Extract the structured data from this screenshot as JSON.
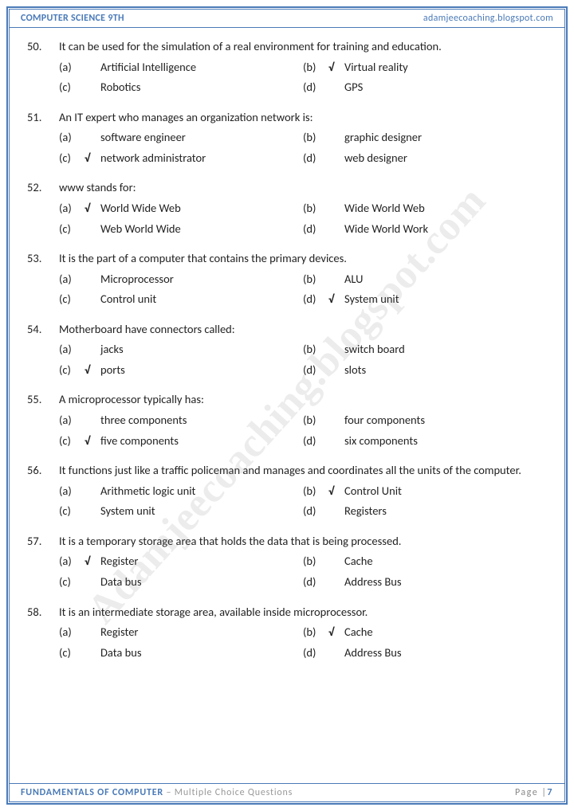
{
  "header": {
    "left": "COMPUTER SCIENCE 9TH",
    "right": "adamjeecoaching.blogspot.com"
  },
  "footer": {
    "title": "FUNDAMENTALS OF COMPUTER",
    "subtitle": " – Multiple Choice Questions",
    "page_label": "Page |",
    "page_num": "7"
  },
  "watermark": "Adamjeecoaching.blogspot.com",
  "check_mark": "√",
  "questions": [
    {
      "num": "50.",
      "text": "It can be used for the simulation of a real environment for training and education.",
      "options": [
        {
          "label": "(a)",
          "text": "Artificial Intelligence",
          "correct": false
        },
        {
          "label": "(b)",
          "text": "Virtual reality",
          "correct": true
        },
        {
          "label": "(c)",
          "text": "Robotics",
          "correct": false
        },
        {
          "label": "(d)",
          "text": "GPS",
          "correct": false
        }
      ]
    },
    {
      "num": "51.",
      "text": "An IT expert who manages an organization network is:",
      "options": [
        {
          "label": "(a)",
          "text": "software engineer",
          "correct": false
        },
        {
          "label": "(b)",
          "text": "graphic designer",
          "correct": false
        },
        {
          "label": "(c)",
          "text": "network administrator",
          "correct": true
        },
        {
          "label": "(d)",
          "text": "web designer",
          "correct": false
        }
      ]
    },
    {
      "num": "52.",
      "text": "www stands for:",
      "options": [
        {
          "label": "(a)",
          "text": "World Wide Web",
          "correct": true
        },
        {
          "label": "(b)",
          "text": "Wide World Web",
          "correct": false
        },
        {
          "label": "(c)",
          "text": "Web World Wide",
          "correct": false
        },
        {
          "label": "(d)",
          "text": "Wide World Work",
          "correct": false
        }
      ]
    },
    {
      "num": "53.",
      "text": "It is the part of a computer that contains the primary devices.",
      "options": [
        {
          "label": "(a)",
          "text": "Microprocessor",
          "correct": false
        },
        {
          "label": "(b)",
          "text": "ALU",
          "correct": false
        },
        {
          "label": "(c)",
          "text": "Control unit",
          "correct": false
        },
        {
          "label": "(d)",
          "text": "System unit",
          "correct": true
        }
      ]
    },
    {
      "num": "54.",
      "text": "Motherboard have connectors called:",
      "options": [
        {
          "label": "(a)",
          "text": "jacks",
          "correct": false
        },
        {
          "label": "(b)",
          "text": "switch board",
          "correct": false
        },
        {
          "label": "(c)",
          "text": "ports",
          "correct": true
        },
        {
          "label": "(d)",
          "text": "slots",
          "correct": false
        }
      ]
    },
    {
      "num": "55.",
      "text": "A microprocessor typically has:",
      "options": [
        {
          "label": "(a)",
          "text": "three components",
          "correct": false
        },
        {
          "label": "(b)",
          "text": "four components",
          "correct": false
        },
        {
          "label": "(c)",
          "text": "five components",
          "correct": true
        },
        {
          "label": "(d)",
          "text": "six components",
          "correct": false
        }
      ]
    },
    {
      "num": "56.",
      "text": "It functions just like a traffic policeman and manages and coordinates all the units of the computer.",
      "options": [
        {
          "label": "(a)",
          "text": "Arithmetic logic unit",
          "correct": false
        },
        {
          "label": "(b)",
          "text": "Control Unit",
          "correct": true
        },
        {
          "label": "(c)",
          "text": "System unit",
          "correct": false
        },
        {
          "label": "(d)",
          "text": "Registers",
          "correct": false
        }
      ]
    },
    {
      "num": "57.",
      "text": "It is a temporary storage area that holds the data that is being processed.",
      "options": [
        {
          "label": "(a)",
          "text": "Register",
          "correct": true
        },
        {
          "label": "(b)",
          "text": "Cache",
          "correct": false
        },
        {
          "label": "(c)",
          "text": "Data bus",
          "correct": false
        },
        {
          "label": "(d)",
          "text": "Address Bus",
          "correct": false
        }
      ]
    },
    {
      "num": "58.",
      "text": "It is an intermediate storage area, available inside microprocessor.",
      "options": [
        {
          "label": "(a)",
          "text": "Register",
          "correct": false
        },
        {
          "label": "(b)",
          "text": "Cache",
          "correct": true
        },
        {
          "label": "(c)",
          "text": "Data bus",
          "correct": false
        },
        {
          "label": "(d)",
          "text": "Address Bus",
          "correct": false
        }
      ]
    }
  ]
}
